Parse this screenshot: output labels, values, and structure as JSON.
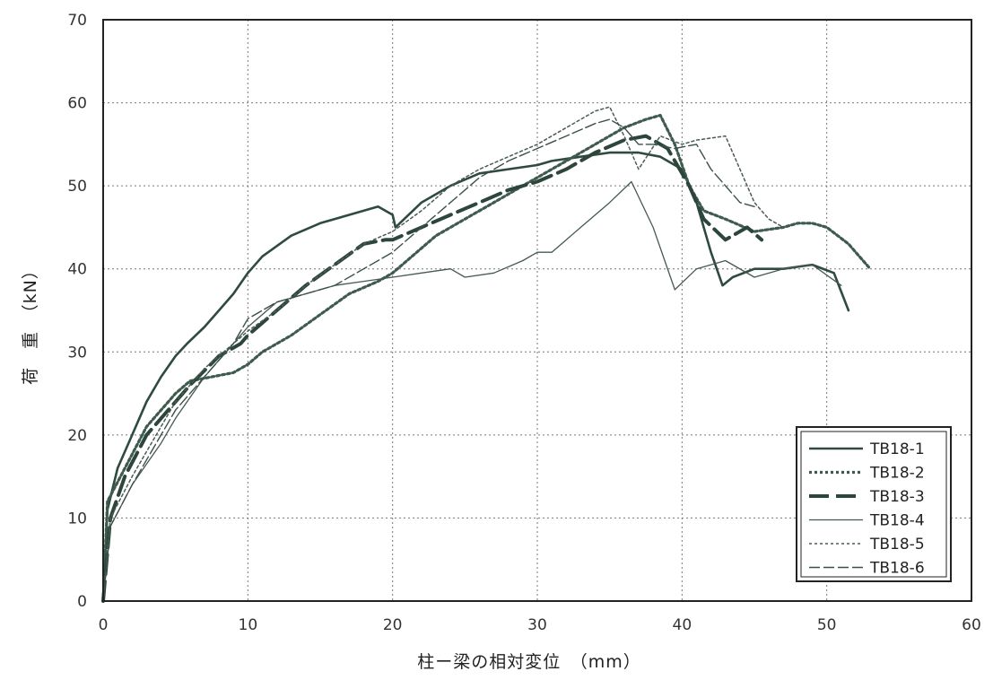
{
  "chart_data": {
    "type": "line",
    "title": "",
    "xlabel": "柱ー梁の相対変位　（mm）",
    "ylabel": "荷　重　（kN）",
    "xlim": [
      0,
      60
    ],
    "ylim": [
      0,
      70
    ],
    "x_ticks": [
      "0",
      "10",
      "20",
      "30",
      "40",
      "50",
      "60"
    ],
    "y_ticks": [
      "0",
      "10",
      "20",
      "30",
      "40",
      "50",
      "60",
      "70"
    ],
    "grid": true,
    "legend_position": "bottom-right",
    "series": [
      {
        "name": "TB18-1",
        "points": [
          [
            0,
            0
          ],
          [
            0.3,
            11
          ],
          [
            1,
            16
          ],
          [
            2,
            20
          ],
          [
            3,
            24
          ],
          [
            4,
            27
          ],
          [
            5,
            29.5
          ],
          [
            5.8,
            31
          ],
          [
            7,
            33
          ],
          [
            8,
            35
          ],
          [
            9,
            37
          ],
          [
            10,
            39.5
          ],
          [
            11,
            41.5
          ],
          [
            13,
            44
          ],
          [
            15,
            45.5
          ],
          [
            17,
            46.5
          ],
          [
            19,
            47.5
          ],
          [
            20,
            46.5
          ],
          [
            20.2,
            45
          ],
          [
            22,
            48
          ],
          [
            24,
            50
          ],
          [
            26,
            51.5
          ],
          [
            28,
            52
          ],
          [
            30,
            52.5
          ],
          [
            31,
            53
          ],
          [
            33,
            53.5
          ],
          [
            35,
            54
          ],
          [
            37,
            54
          ],
          [
            38.5,
            53.5
          ],
          [
            40,
            52
          ],
          [
            41,
            48
          ],
          [
            42,
            42
          ],
          [
            42.8,
            38
          ],
          [
            43.5,
            39
          ],
          [
            45,
            40
          ],
          [
            47,
            40
          ],
          [
            49,
            40.5
          ],
          [
            50.5,
            39.5
          ],
          [
            51.5,
            35
          ]
        ]
      },
      {
        "name": "TB18-2",
        "points": [
          [
            0,
            0
          ],
          [
            0.3,
            12
          ],
          [
            1.5,
            16
          ],
          [
            3,
            21
          ],
          [
            5,
            25
          ],
          [
            6,
            26.5
          ],
          [
            7.5,
            27
          ],
          [
            9,
            27.5
          ],
          [
            10,
            28.5
          ],
          [
            11,
            30
          ],
          [
            13,
            32
          ],
          [
            15,
            34.5
          ],
          [
            17,
            37
          ],
          [
            19,
            38.5
          ],
          [
            20,
            39.5
          ],
          [
            21,
            41
          ],
          [
            23,
            44
          ],
          [
            25,
            46
          ],
          [
            27,
            48
          ],
          [
            29,
            50
          ],
          [
            30,
            51
          ],
          [
            32,
            53
          ],
          [
            34,
            55
          ],
          [
            36,
            57
          ],
          [
            37.5,
            58
          ],
          [
            38.5,
            58.5
          ],
          [
            39.5,
            55
          ],
          [
            40.5,
            50
          ],
          [
            41.5,
            47
          ],
          [
            43,
            46
          ],
          [
            45,
            44.5
          ],
          [
            47,
            45
          ],
          [
            48,
            45.5
          ],
          [
            49,
            45.5
          ],
          [
            50,
            45
          ],
          [
            51.5,
            43
          ],
          [
            53,
            40
          ]
        ]
      },
      {
        "name": "TB18-3",
        "points": [
          [
            0,
            0
          ],
          [
            0.5,
            10
          ],
          [
            1.5,
            15
          ],
          [
            3,
            20
          ],
          [
            5,
            24
          ],
          [
            6,
            26
          ],
          [
            8,
            29.5
          ],
          [
            9.5,
            31
          ],
          [
            10,
            32
          ],
          [
            12,
            35
          ],
          [
            14,
            38
          ],
          [
            16,
            40.5
          ],
          [
            18,
            43
          ],
          [
            19.5,
            43.5
          ],
          [
            20,
            43.5
          ],
          [
            22,
            45
          ],
          [
            24,
            46.5
          ],
          [
            26,
            48
          ],
          [
            28,
            49.5
          ],
          [
            30,
            50.5
          ],
          [
            32,
            52
          ],
          [
            34,
            54
          ],
          [
            36,
            55.5
          ],
          [
            37.5,
            56
          ],
          [
            39,
            54.5
          ],
          [
            40.5,
            50
          ],
          [
            41.5,
            46
          ],
          [
            43,
            43.5
          ],
          [
            44.5,
            45
          ],
          [
            45.5,
            43.5
          ]
        ]
      },
      {
        "name": "TB18-4",
        "points": [
          [
            0,
            0
          ],
          [
            0.5,
            9
          ],
          [
            2,
            14
          ],
          [
            4,
            19
          ],
          [
            5,
            22
          ],
          [
            7,
            27
          ],
          [
            9,
            31
          ],
          [
            10,
            33
          ],
          [
            12,
            36
          ],
          [
            14,
            37
          ],
          [
            16,
            38
          ],
          [
            18,
            38.5
          ],
          [
            20,
            39
          ],
          [
            22,
            39.5
          ],
          [
            24,
            40
          ],
          [
            25,
            39
          ],
          [
            27,
            39.5
          ],
          [
            29,
            41
          ],
          [
            30,
            42
          ],
          [
            31,
            42
          ],
          [
            33,
            45
          ],
          [
            35,
            48
          ],
          [
            36.5,
            50.5
          ],
          [
            38,
            45
          ],
          [
            39.5,
            37.5
          ],
          [
            41,
            40
          ],
          [
            43,
            41
          ],
          [
            45,
            39
          ],
          [
            47,
            40
          ],
          [
            49,
            40.5
          ],
          [
            51,
            38
          ]
        ]
      },
      {
        "name": "TB18-5",
        "points": [
          [
            0,
            0
          ],
          [
            0.5,
            10
          ],
          [
            2,
            15
          ],
          [
            4,
            21
          ],
          [
            5,
            24
          ],
          [
            7,
            28
          ],
          [
            9,
            31
          ],
          [
            10,
            32.5
          ],
          [
            12,
            35
          ],
          [
            14,
            38
          ],
          [
            16,
            40.5
          ],
          [
            18,
            43
          ],
          [
            20,
            44.5
          ],
          [
            22,
            47
          ],
          [
            24,
            50
          ],
          [
            26,
            52
          ],
          [
            28,
            53.5
          ],
          [
            30,
            55
          ],
          [
            32,
            57
          ],
          [
            34,
            59
          ],
          [
            35,
            59.5
          ],
          [
            36,
            56
          ],
          [
            37,
            52
          ],
          [
            38.5,
            56
          ],
          [
            40,
            55
          ],
          [
            41,
            55.5
          ],
          [
            43,
            56
          ],
          [
            44,
            52
          ],
          [
            45,
            48
          ],
          [
            46,
            46
          ],
          [
            47,
            45
          ]
        ]
      },
      {
        "name": "TB18-6",
        "points": [
          [
            0,
            0
          ],
          [
            0.5,
            9
          ],
          [
            2,
            14
          ],
          [
            4,
            20
          ],
          [
            5,
            23
          ],
          [
            7,
            27
          ],
          [
            9,
            31
          ],
          [
            10,
            34
          ],
          [
            12,
            36
          ],
          [
            14,
            37
          ],
          [
            16,
            38
          ],
          [
            18,
            40
          ],
          [
            20,
            42
          ],
          [
            22,
            45
          ],
          [
            24,
            48
          ],
          [
            26,
            51
          ],
          [
            28,
            53
          ],
          [
            30,
            54.5
          ],
          [
            32,
            56
          ],
          [
            34,
            57.5
          ],
          [
            35,
            58
          ],
          [
            36,
            57
          ],
          [
            37,
            55
          ],
          [
            38,
            55
          ],
          [
            39.5,
            54.5
          ],
          [
            41,
            55
          ],
          [
            42,
            52
          ],
          [
            43,
            50
          ],
          [
            44,
            48
          ],
          [
            45,
            47.5
          ]
        ]
      }
    ]
  }
}
